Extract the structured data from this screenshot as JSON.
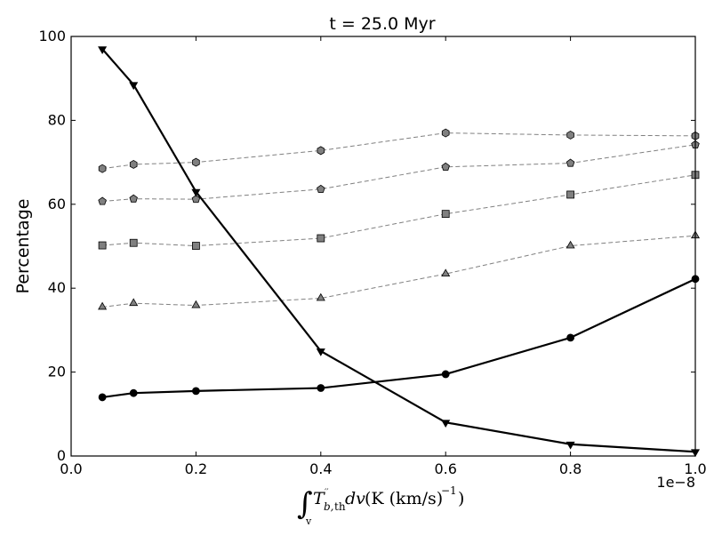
{
  "chart_data": {
    "type": "line",
    "title": "t = 25.0 Myr",
    "ylabel": "Percentage",
    "xlabel": "",
    "x_offset_text": "1e−8",
    "xlim": [
      0.0,
      1.0
    ],
    "ylim": [
      0,
      100
    ],
    "x_scale_factor": "1e-8",
    "x_ticks": [
      0.0,
      0.2,
      0.4,
      0.6,
      0.8,
      1.0
    ],
    "x_tick_labels": [
      "0.0",
      "0.2",
      "0.4",
      "0.6",
      "0.8",
      "1.0"
    ],
    "y_ticks": [
      0,
      20,
      40,
      60,
      80,
      100
    ],
    "y_tick_labels": [
      "0",
      "20",
      "40",
      "60",
      "80",
      "100"
    ],
    "grid": false,
    "legend": "none",
    "x": [
      0.05,
      0.1,
      0.2,
      0.4,
      0.6,
      0.8,
      1.0
    ],
    "series": [
      {
        "marker": "triangle-down",
        "style": "solid",
        "color": "#000000",
        "values": [
          97,
          88.5,
          63,
          25,
          8,
          2.8,
          1
        ]
      },
      {
        "marker": "circle",
        "style": "solid",
        "color": "#000000",
        "values": [
          14,
          15,
          15.5,
          16.2,
          19.5,
          28.2,
          42.2
        ]
      },
      {
        "marker": "hexagon",
        "style": "dashed",
        "color": "#808080",
        "values": [
          68.5,
          69.5,
          70,
          72.8,
          77,
          76.5,
          76.3
        ]
      },
      {
        "marker": "pentagon",
        "style": "dashed",
        "color": "#808080",
        "values": [
          60.7,
          61.3,
          61.2,
          63.6,
          68.9,
          69.8,
          74.2
        ]
      },
      {
        "marker": "square",
        "style": "dashed",
        "color": "#808080",
        "values": [
          50.2,
          50.8,
          50.1,
          51.9,
          57.7,
          62.3,
          67
        ]
      },
      {
        "marker": "triangle-up",
        "style": "dashed",
        "color": "#808080",
        "values": [
          35.5,
          36.4,
          35.9,
          37.6,
          43.4,
          50.1,
          52.5
        ]
      }
    ]
  }
}
